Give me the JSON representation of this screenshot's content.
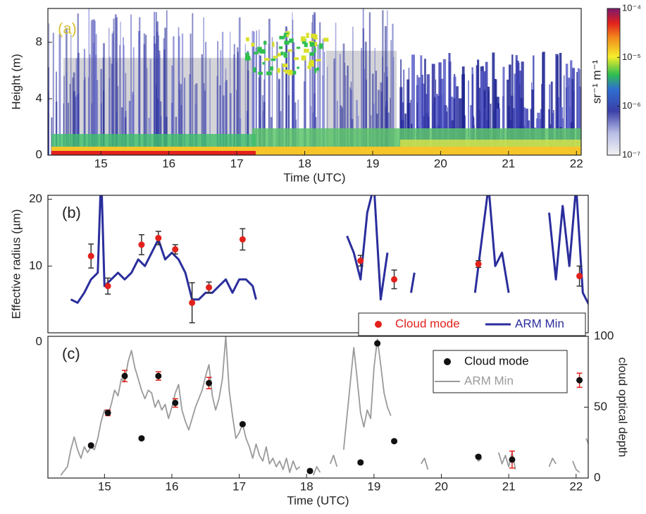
{
  "chart_data": [
    {
      "type": "heatmap",
      "panel_label": "(a)",
      "x_label": "Time (UTC)",
      "y_label": "Height (m)",
      "xlim": [
        14.22,
        22.07
      ],
      "xticks": [
        15,
        16,
        17,
        18,
        19,
        20,
        21,
        22
      ],
      "ylim": [
        0,
        10.4
      ],
      "yticks": [
        0,
        4,
        8
      ],
      "colorbar": {
        "label": "sr⁻¹ m⁻¹",
        "scale": "log",
        "lim": [
          1e-07,
          0.0001
        ],
        "ticks": [
          {
            "value": 0.0001,
            "label": "10⁻⁴"
          },
          {
            "value": 1e-05,
            "label": "10⁻⁵"
          },
          {
            "value": 1e-06,
            "label": "10⁻⁶"
          },
          {
            "value": 1e-07,
            "label": "10⁻⁷"
          }
        ]
      }
    },
    {
      "type": "scatter",
      "panel_label": "(b)",
      "y_label": "Effective radius (µm)",
      "xlim": [
        14.16,
        22.18
      ],
      "ylim": [
        0,
        20.6
      ],
      "yticks": [
        10,
        20
      ],
      "legend": "lower right",
      "series": [
        {
          "name": "Cloud mode",
          "kind": "markers",
          "color": "#e3211c",
          "error_color": "#333333",
          "x": [
            14.8,
            15.05,
            15.55,
            15.8,
            16.05,
            16.3,
            16.55,
            17.05,
            18.8,
            19.3,
            20.55,
            22.05
          ],
          "values": [
            11.5,
            7,
            13.2,
            14.2,
            12.5,
            4.5,
            6.8,
            14,
            10.8,
            8,
            10.3,
            8.5
          ],
          "errors": [
            1.8,
            1.2,
            1.5,
            1,
            0.7,
            3,
            0.8,
            1.6,
            0.8,
            1.4,
            0.5,
            1.5
          ]
        },
        {
          "name": "ARM Min",
          "kind": "line",
          "color": "#2a2e9c",
          "x": [
            14.5,
            14.6,
            14.7,
            14.8,
            14.9,
            14.95,
            15.0,
            15.1,
            15.2,
            15.3,
            15.4,
            15.5,
            15.6,
            15.7,
            15.8,
            15.9,
            16.0,
            16.1,
            16.2,
            16.3,
            16.4,
            16.5,
            16.6,
            16.7,
            16.8,
            16.9,
            17.0,
            17.1,
            17.2,
            17.25,
            17.6,
            18.6,
            18.7,
            18.8,
            18.9,
            19.0,
            19.1,
            19.2,
            19.35,
            19.55,
            19.6,
            19.65,
            20.5,
            20.6,
            20.7,
            20.8,
            20.9,
            21.0,
            21.3,
            21.6,
            21.7,
            21.8,
            21.9,
            22.0,
            22.1,
            22.2
          ],
          "values": [
            5,
            4.5,
            6,
            8,
            9,
            24,
            7,
            8,
            9,
            8,
            9,
            11,
            10,
            12,
            14,
            11,
            12,
            11,
            9,
            5,
            5,
            6,
            6,
            7,
            8,
            6,
            8,
            8,
            7,
            5,
            null,
            14.5,
            12,
            8,
            18,
            22,
            5,
            12,
            null,
            6,
            9,
            null,
            6,
            14,
            22,
            10,
            12,
            6,
            null,
            18,
            8,
            19,
            10,
            22,
            6,
            4
          ]
        }
      ]
    },
    {
      "type": "scatter",
      "panel_label": "(c)",
      "x_label": "Time (UTC)",
      "y_label": "cloud optical depth",
      "y_axis_side": "right",
      "left_annotation": "0",
      "xlim": [
        14.16,
        22.18
      ],
      "xticks": [
        15,
        16,
        17,
        18,
        19,
        20,
        21,
        22
      ],
      "ylim": [
        0,
        100
      ],
      "yticks": [
        0,
        50,
        100
      ],
      "legend": "upper right",
      "series": [
        {
          "name": "Cloud mode",
          "kind": "markers",
          "color": "#111111",
          "error_color": "#e3211c",
          "x": [
            14.8,
            15.05,
            15.3,
            15.55,
            15.8,
            16.05,
            16.55,
            17.05,
            18.05,
            18.8,
            19.05,
            19.3,
            20.55,
            21.05,
            22.05
          ],
          "values": [
            23,
            46,
            72,
            28,
            72,
            53,
            67,
            38,
            5,
            11,
            95,
            26,
            15,
            13,
            69
          ],
          "errors": [
            1,
            2,
            4,
            1,
            3,
            3,
            4,
            1,
            1,
            1,
            1,
            1,
            1,
            6,
            5
          ]
        },
        {
          "name": "ARM Min",
          "kind": "line",
          "color": "#9a9a9a",
          "x": [
            14.35,
            14.45,
            14.5,
            14.55,
            14.6,
            14.65,
            14.7,
            14.75,
            14.8,
            14.85,
            14.9,
            14.95,
            15.0,
            15.05,
            15.1,
            15.15,
            15.2,
            15.25,
            15.3,
            15.35,
            15.4,
            15.45,
            15.5,
            15.55,
            15.6,
            15.65,
            15.7,
            15.75,
            15.8,
            15.85,
            15.9,
            15.95,
            16.0,
            16.05,
            16.1,
            16.15,
            16.2,
            16.25,
            16.3,
            16.35,
            16.4,
            16.45,
            16.5,
            16.55,
            16.6,
            16.65,
            16.7,
            16.75,
            16.8,
            16.85,
            16.9,
            16.95,
            17.0,
            17.05,
            17.1,
            17.15,
            17.2,
            17.25,
            17.3,
            17.35,
            17.4,
            17.45,
            17.5,
            17.55,
            17.6,
            17.65,
            17.7,
            17.75,
            17.8,
            17.85,
            17.9,
            17.95,
            18.1,
            18.15,
            18.2,
            18.25,
            18.35,
            18.4,
            18.45,
            18.5,
            18.55,
            18.6,
            18.65,
            18.7,
            18.75,
            18.8,
            18.85,
            18.9,
            18.95,
            19.0,
            19.05,
            19.1,
            19.15,
            19.2,
            19.25,
            19.3,
            19.7,
            19.75,
            19.8,
            19.9,
            20.5,
            20.55,
            20.6,
            20.7,
            20.85,
            20.9,
            20.95,
            21.0,
            21.05,
            21.1,
            21.2,
            21.6,
            21.65,
            21.7,
            21.8,
            21.95,
            22.0,
            22.05,
            22.1,
            22.15,
            22.2
          ],
          "values": [
            2,
            8,
            20,
            29,
            20,
            14,
            22,
            18,
            22,
            20,
            28,
            40,
            48,
            44,
            52,
            62,
            58,
            70,
            68,
            82,
            90,
            78,
            70,
            62,
            56,
            62,
            60,
            50,
            55,
            48,
            52,
            42,
            50,
            60,
            66,
            48,
            40,
            34,
            42,
            50,
            56,
            62,
            72,
            80,
            58,
            48,
            56,
            70,
            100,
            62,
            44,
            28,
            32,
            38,
            28,
            22,
            14,
            24,
            16,
            12,
            22,
            10,
            14,
            8,
            12,
            6,
            14,
            4,
            12,
            6,
            8,
            null,
            2,
            8,
            4,
            null,
            10,
            16,
            8,
            null,
            20,
            44,
            68,
            92,
            70,
            46,
            36,
            48,
            42,
            78,
            98,
            80,
            60,
            50,
            44,
            null,
            10,
            14,
            6,
            null,
            16,
            12,
            14,
            null,
            18,
            10,
            16,
            8,
            18,
            6,
            null,
            8,
            14,
            10,
            null,
            12,
            6,
            4,
            null,
            28,
            22
          ]
        }
      ]
    }
  ]
}
